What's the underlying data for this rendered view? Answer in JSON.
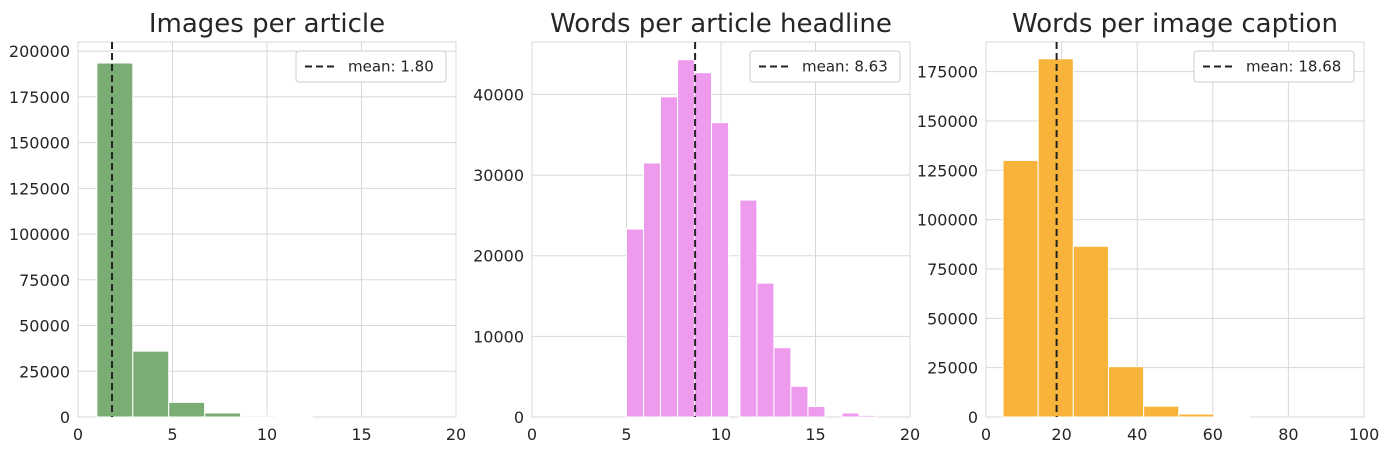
{
  "chart_data": [
    {
      "type": "bar",
      "title": "Images per article",
      "xlim": [
        0,
        20
      ],
      "ylim": [
        0,
        205000
      ],
      "xticks": [
        0,
        5,
        10,
        15,
        20
      ],
      "yticks": [
        0,
        25000,
        50000,
        75000,
        100000,
        125000,
        150000,
        175000,
        200000
      ],
      "bin_width": 1.9,
      "bins": [
        {
          "x0": 1.0,
          "x1": 2.9,
          "value": 193500
        },
        {
          "x0": 2.9,
          "x1": 4.8,
          "value": 36000
        },
        {
          "x0": 4.8,
          "x1": 6.7,
          "value": 8000
        },
        {
          "x0": 6.7,
          "x1": 8.6,
          "value": 2200
        },
        {
          "x0": 8.6,
          "x1": 10.5,
          "value": 600
        },
        {
          "x0": 10.5,
          "x1": 12.4,
          "value": 250
        }
      ],
      "color": "#7aad74",
      "mean": 1.8,
      "legend": "mean: 1.80",
      "legend_position": "upper right",
      "grid": true
    },
    {
      "type": "bar",
      "title": "Words per article headline",
      "xlim": [
        0,
        20
      ],
      "ylim": [
        0,
        46500
      ],
      "xticks": [
        0,
        5,
        10,
        15,
        20
      ],
      "yticks": [
        0,
        10000,
        20000,
        30000,
        40000
      ],
      "bins": [
        {
          "x0": 5.0,
          "x1": 5.9,
          "value": 23300
        },
        {
          "x0": 5.9,
          "x1": 6.8,
          "value": 31500
        },
        {
          "x0": 6.8,
          "x1": 7.7,
          "value": 39700
        },
        {
          "x0": 7.7,
          "x1": 8.6,
          "value": 44300
        },
        {
          "x0": 8.6,
          "x1": 9.5,
          "value": 42700
        },
        {
          "x0": 9.5,
          "x1": 10.4,
          "value": 36500
        },
        {
          "x0": 10.4,
          "x1": 11.0,
          "value": 0
        },
        {
          "x0": 11.0,
          "x1": 11.9,
          "value": 26900
        },
        {
          "x0": 11.9,
          "x1": 12.8,
          "value": 16600
        },
        {
          "x0": 12.8,
          "x1": 13.7,
          "value": 8600
        },
        {
          "x0": 13.7,
          "x1": 14.6,
          "value": 3800
        },
        {
          "x0": 14.6,
          "x1": 15.5,
          "value": 1300
        },
        {
          "x0": 15.5,
          "x1": 16.4,
          "value": 0
        },
        {
          "x0": 16.4,
          "x1": 17.3,
          "value": 500
        },
        {
          "x0": 17.3,
          "x1": 18.2,
          "value": 200
        }
      ],
      "color": "#ee9bee",
      "mean": 8.63,
      "legend": "mean: 8.63",
      "legend_position": "upper right",
      "grid": true
    },
    {
      "type": "bar",
      "title": "Words per image caption",
      "xlim": [
        0,
        100
      ],
      "ylim": [
        0,
        190000
      ],
      "xticks": [
        0,
        20,
        40,
        60,
        80,
        100
      ],
      "yticks": [
        0,
        25000,
        50000,
        75000,
        100000,
        125000,
        150000,
        175000
      ],
      "bins": [
        {
          "x0": 4.5,
          "x1": 13.8,
          "value": 130000
        },
        {
          "x0": 13.8,
          "x1": 23.1,
          "value": 181500
        },
        {
          "x0": 23.1,
          "x1": 32.4,
          "value": 86500
        },
        {
          "x0": 32.4,
          "x1": 41.7,
          "value": 25500
        },
        {
          "x0": 41.7,
          "x1": 51.0,
          "value": 5500
        },
        {
          "x0": 51.0,
          "x1": 60.3,
          "value": 1500
        },
        {
          "x0": 60.3,
          "x1": 69.6,
          "value": 300
        }
      ],
      "color": "#f8b33a",
      "mean": 18.68,
      "legend": "mean: 18.68",
      "legend_position": "upper right",
      "grid": true
    }
  ]
}
